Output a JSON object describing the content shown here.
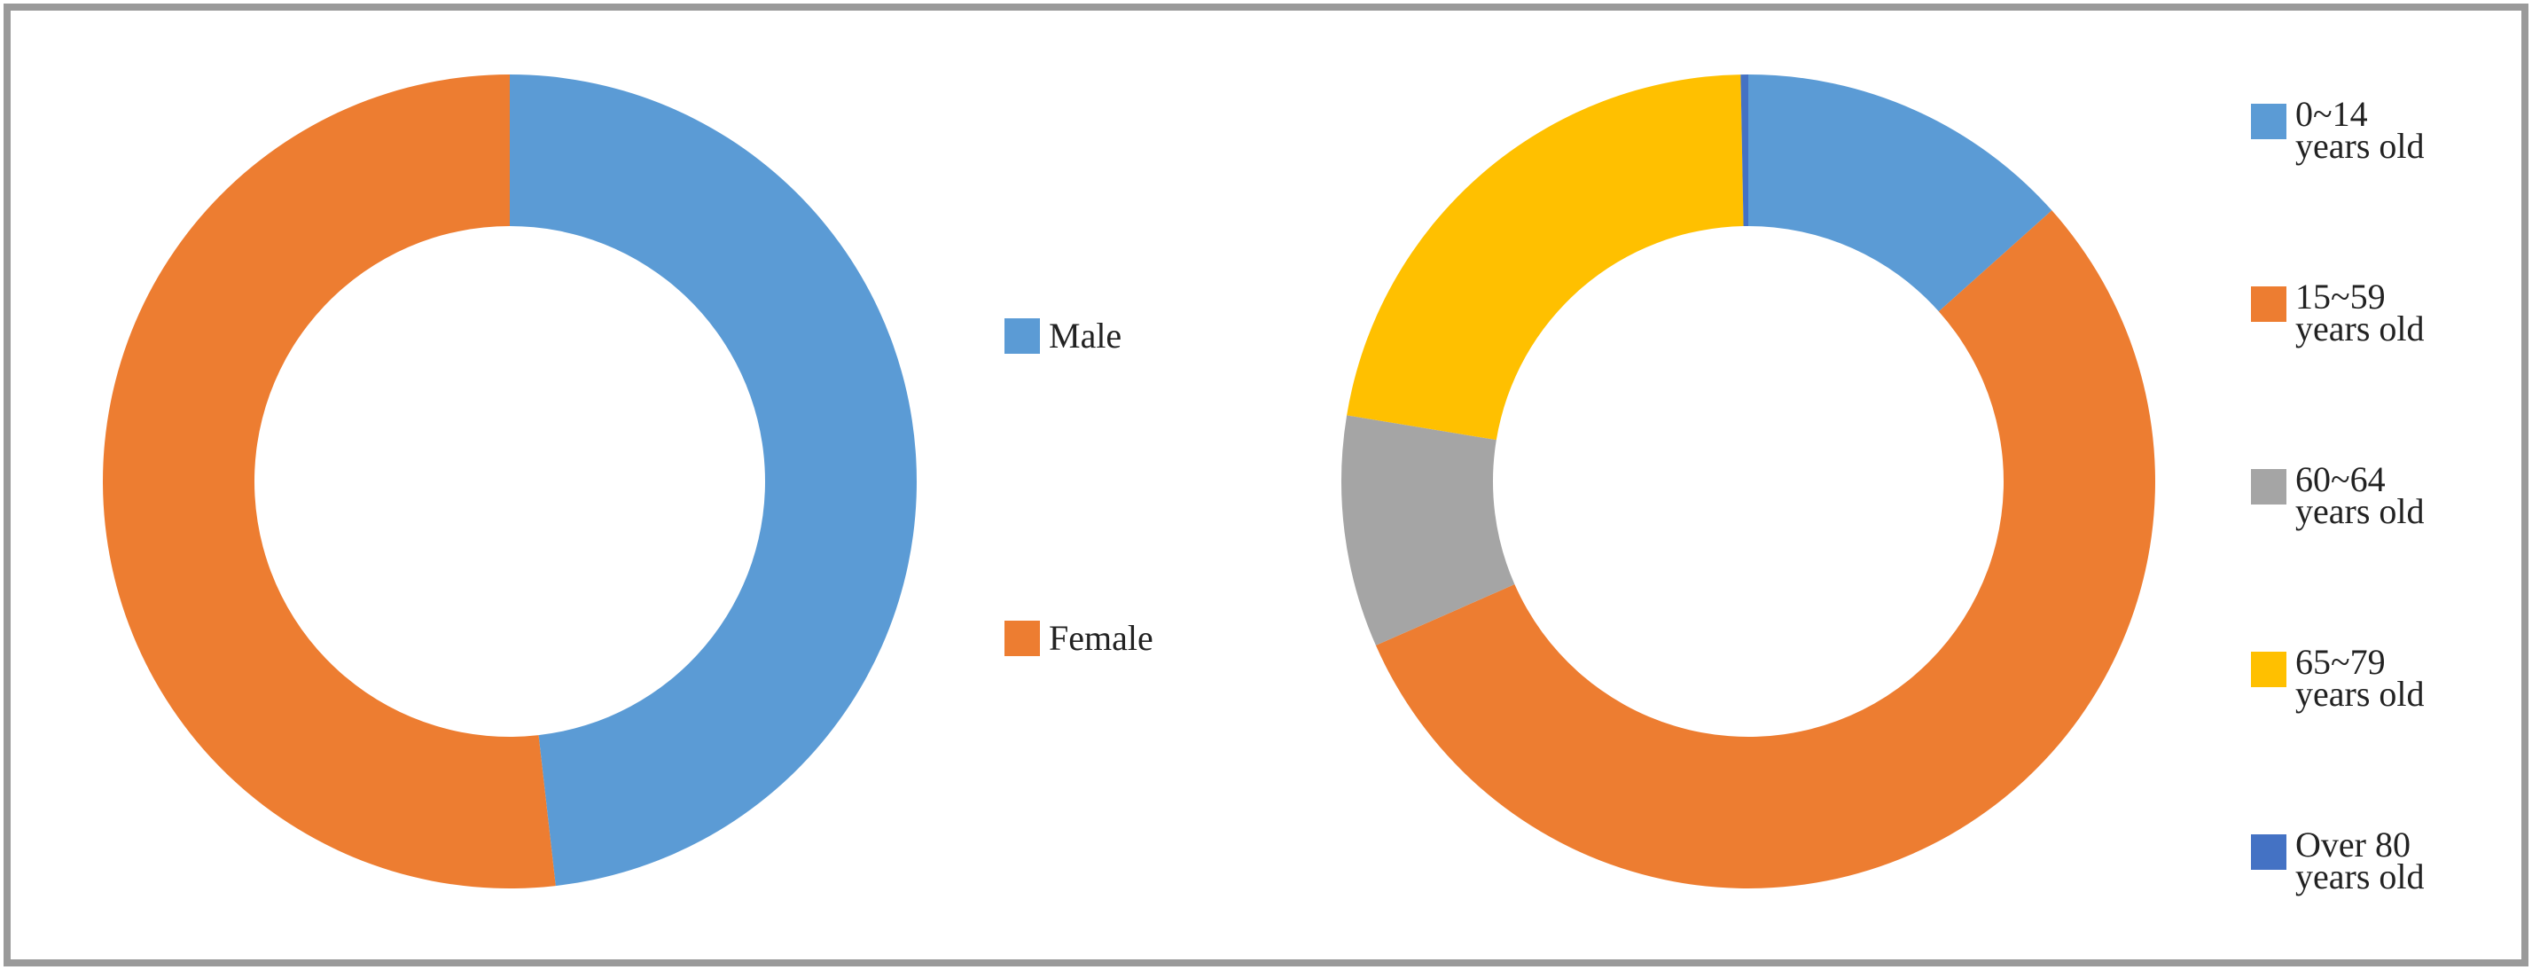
{
  "chart_data": [
    {
      "type": "donut",
      "categories": [
        "Male",
        "Female"
      ],
      "values": [
        48.2,
        51.8
      ],
      "colors": [
        "#5b9bd5",
        "#ed7d31"
      ],
      "legend": "right"
    },
    {
      "type": "donut",
      "categories": [
        "0~14\nyears old",
        "15~59\nyears old",
        "60~64\nyears old",
        "65~79\nyears old",
        "Over 80\nyears old"
      ],
      "values": [
        13.4,
        55.0,
        9.2,
        22.1,
        0.3
      ],
      "colors": [
        "#5b9bd5",
        "#ed7d31",
        "#a5a5a5",
        "#ffc000",
        "#4472c4"
      ],
      "legend": "right"
    }
  ]
}
